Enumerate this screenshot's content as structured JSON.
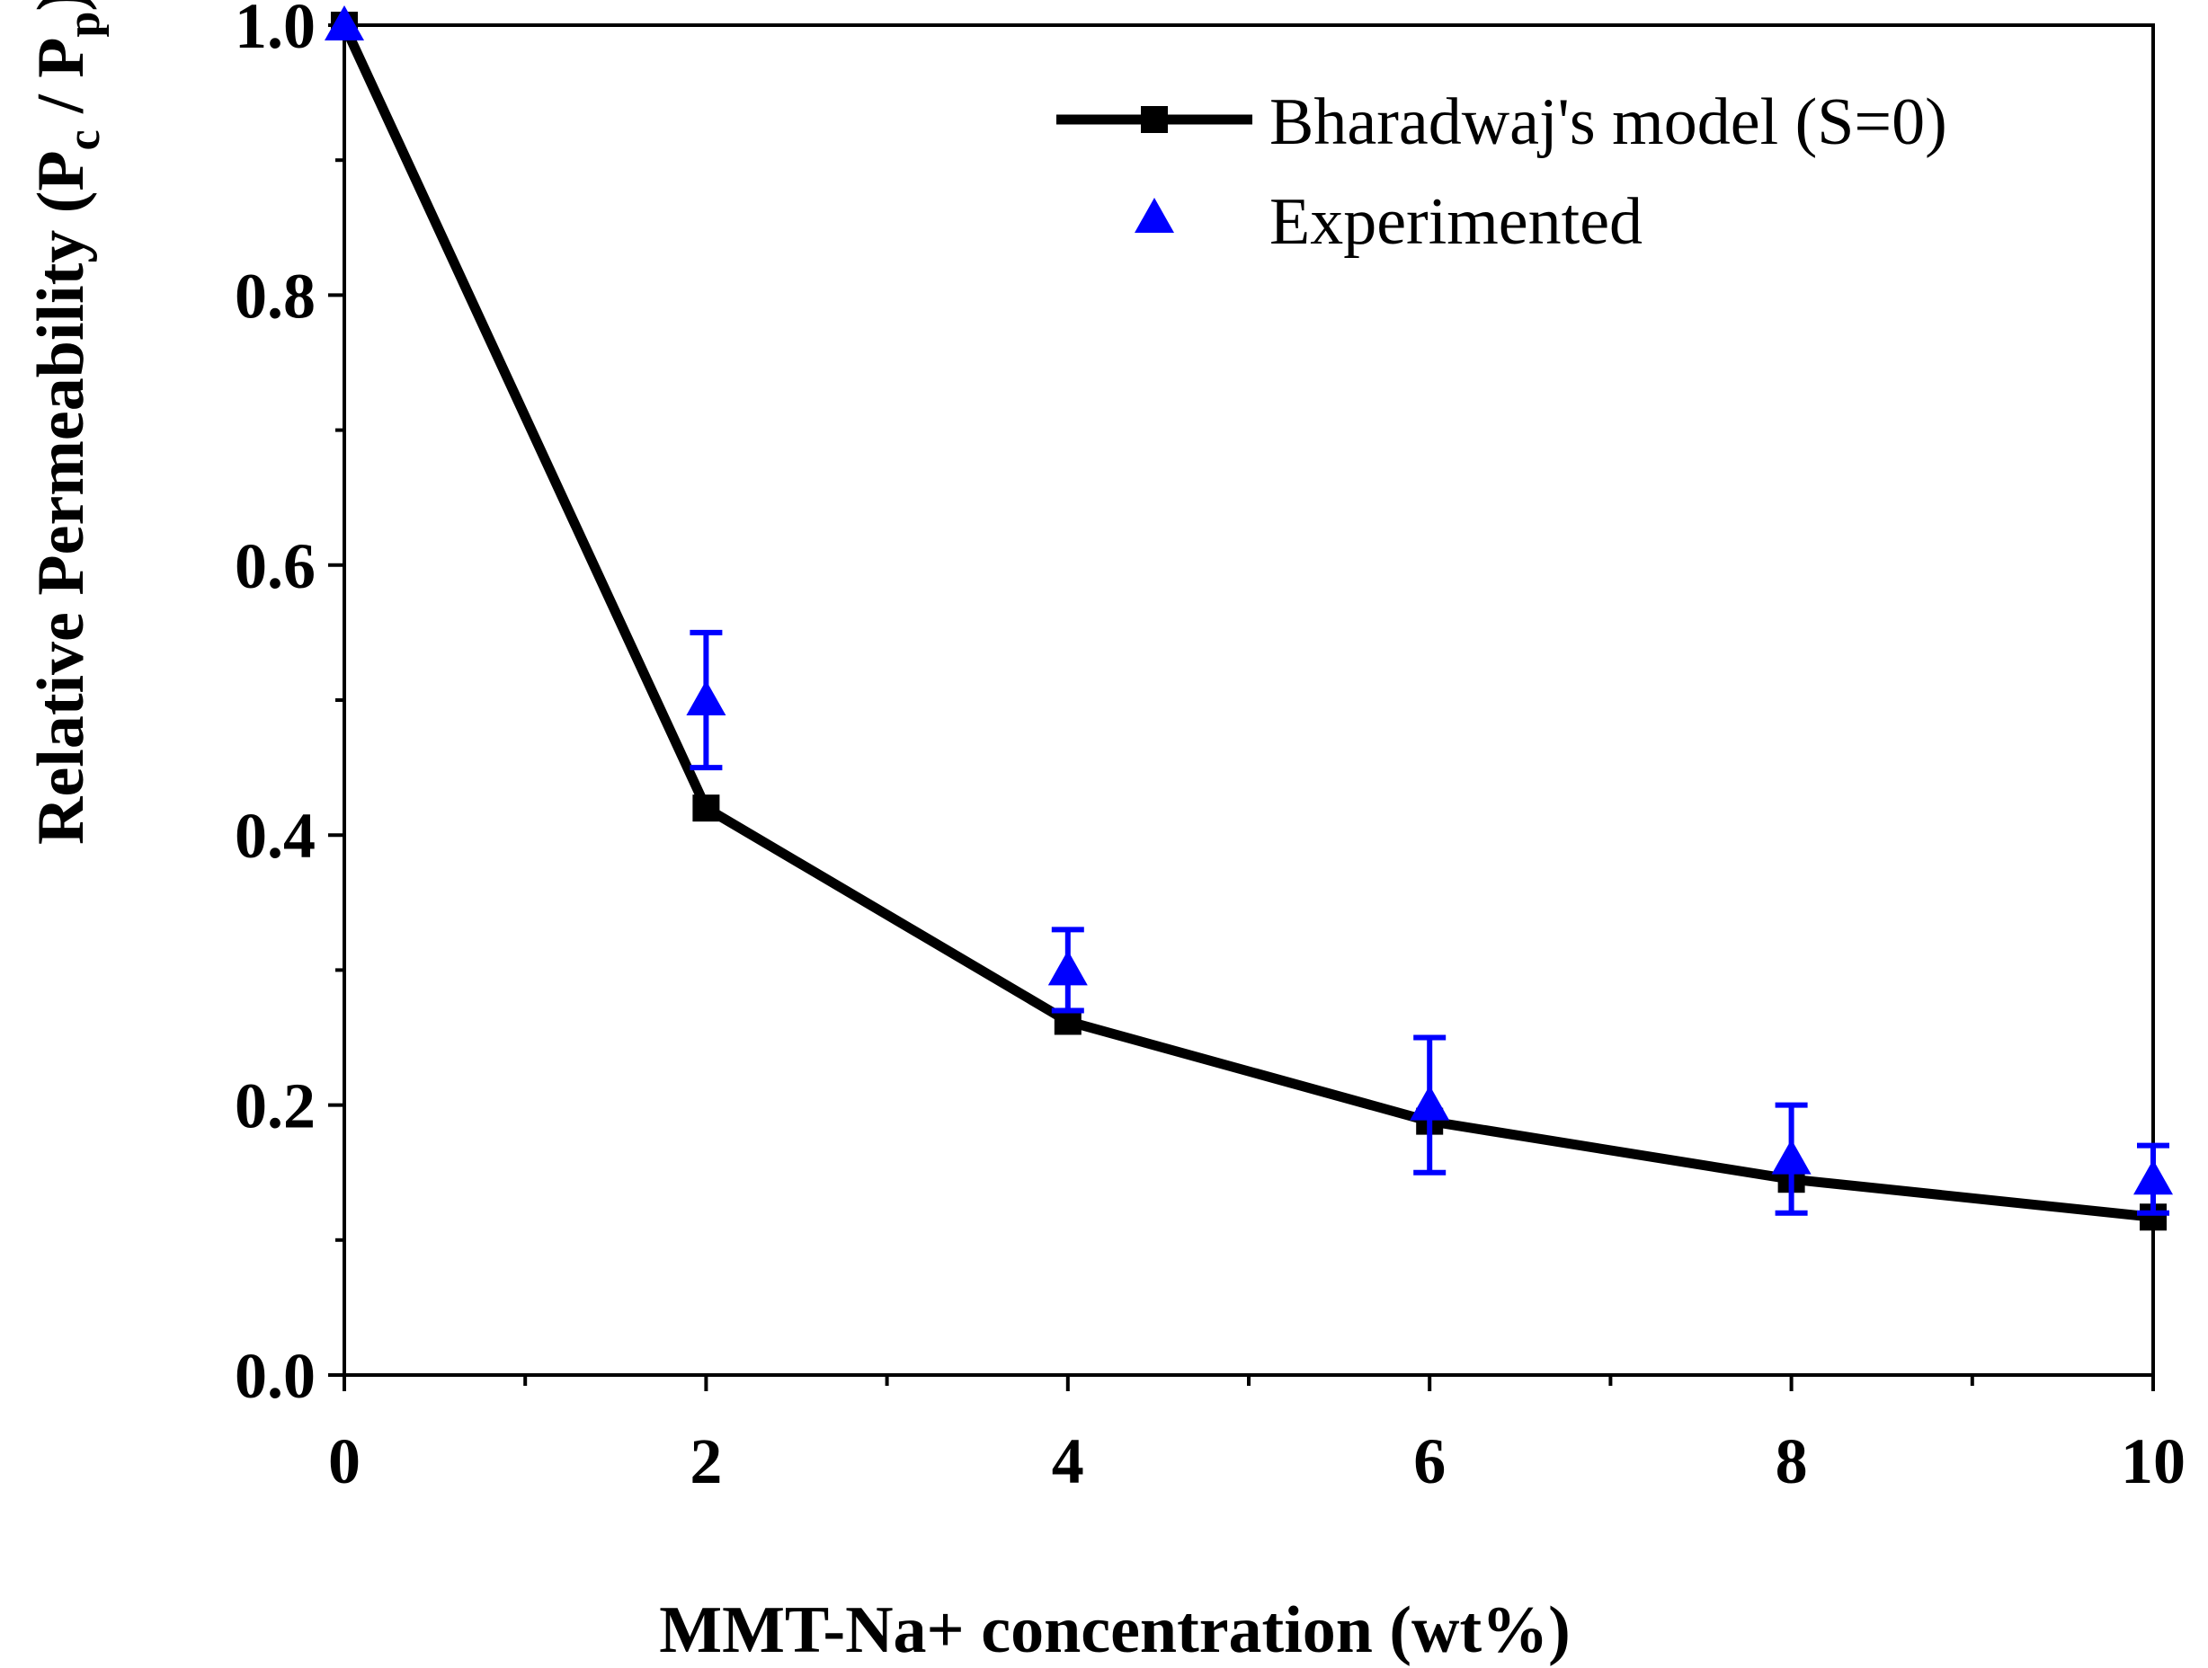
{
  "chart_data": {
    "type": "line",
    "title": "",
    "xlabel": "MMT-Na+ concentration (wt%)",
    "ylabel": {
      "main": "Relative Permeability (P",
      "sub_c": "c",
      "sep": " / P",
      "sub_p": "p",
      "close": ")"
    },
    "xlim": [
      0,
      10
    ],
    "ylim": [
      0,
      1.0
    ],
    "x_ticks": [
      "0",
      "2",
      "4",
      "6",
      "8",
      "10"
    ],
    "y_ticks": [
      "0.0",
      "0.2",
      "0.4",
      "0.6",
      "0.8",
      "1.0"
    ],
    "legend_position": "top-right",
    "colors": {
      "model": "#000000",
      "experiment": "#0000ff"
    },
    "series": [
      {
        "name": "Bharadwaj's model (S=0)",
        "marker": "square",
        "x": [
          0,
          2,
          4,
          6,
          8,
          10
        ],
        "y": [
          1.0,
          0.42,
          0.262,
          0.188,
          0.145,
          0.117
        ]
      },
      {
        "name": "Experimented",
        "marker": "triangle",
        "x": [
          0,
          2,
          4,
          6,
          8,
          10
        ],
        "y": [
          1.0,
          0.5,
          0.3,
          0.2,
          0.16,
          0.145
        ],
        "err": [
          0,
          0.05,
          0.03,
          0.05,
          0.04,
          0.025
        ]
      }
    ]
  }
}
